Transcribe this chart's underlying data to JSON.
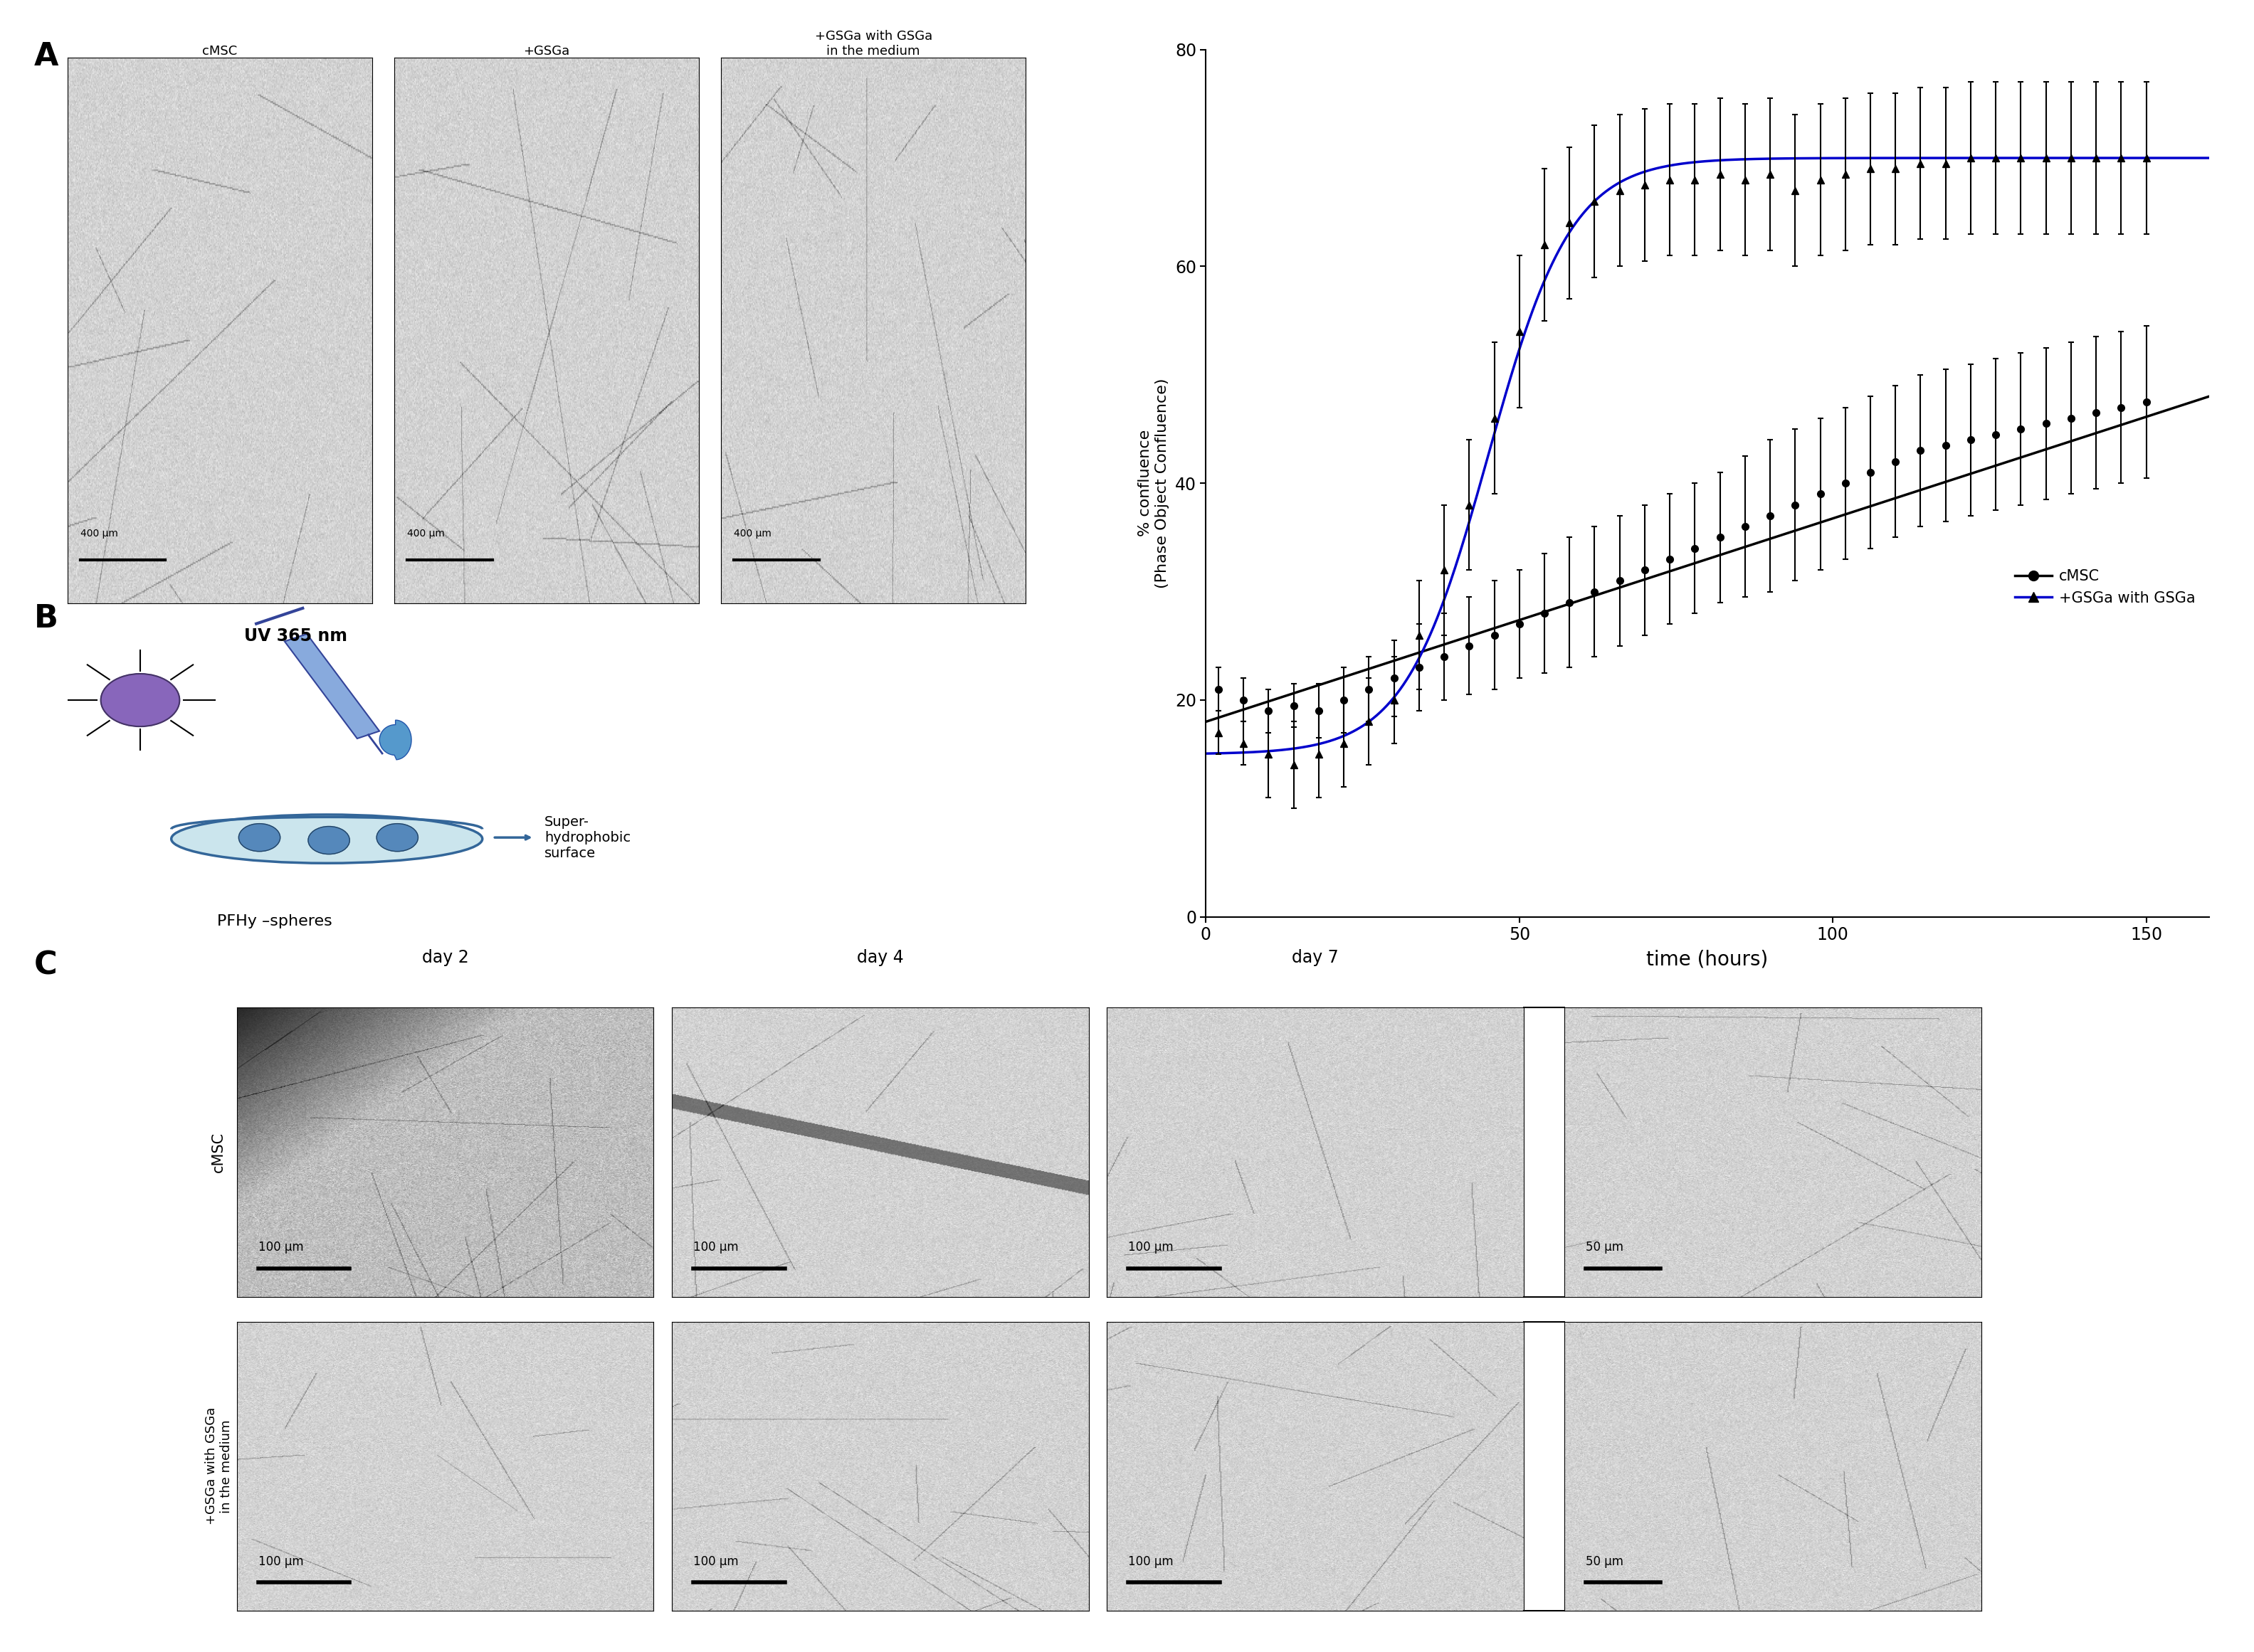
{
  "title": "",
  "panel_labels": [
    "A",
    "B",
    "C"
  ],
  "cmsc_x": [
    2,
    6,
    10,
    14,
    18,
    22,
    26,
    30,
    34,
    38,
    42,
    46,
    50,
    54,
    58,
    62,
    66,
    70,
    74,
    78,
    82,
    86,
    90,
    94,
    98,
    102,
    106,
    110,
    114,
    118,
    122,
    126,
    130,
    134,
    138,
    142,
    146,
    150
  ],
  "cmsc_y": [
    21,
    20,
    19,
    19.5,
    19,
    20,
    21,
    22,
    23,
    24,
    25,
    26,
    27,
    28,
    29,
    30,
    31,
    32,
    33,
    34,
    35,
    36,
    37,
    38,
    39,
    40,
    41,
    42,
    43,
    43.5,
    44,
    44.5,
    45,
    45.5,
    46,
    46.5,
    47,
    47.5
  ],
  "cmsc_yerr": [
    2,
    2,
    2,
    2,
    2.5,
    3,
    3,
    3.5,
    4,
    4,
    4.5,
    5,
    5,
    5.5,
    6,
    6,
    6,
    6,
    6,
    6,
    6,
    6.5,
    7,
    7,
    7,
    7,
    7,
    7,
    7,
    7,
    7,
    7,
    7,
    7,
    7,
    7,
    7,
    7
  ],
  "gsga_x": [
    2,
    6,
    10,
    14,
    18,
    22,
    26,
    30,
    34,
    38,
    42,
    46,
    50,
    54,
    58,
    62,
    66,
    70,
    74,
    78,
    82,
    86,
    90,
    94,
    98,
    102,
    106,
    110,
    114,
    118,
    122,
    126,
    130,
    134,
    138,
    142,
    146,
    150
  ],
  "gsga_y": [
    17,
    16,
    15,
    14,
    15,
    16,
    18,
    20,
    26,
    32,
    38,
    46,
    54,
    62,
    64,
    66,
    67,
    67.5,
    68,
    68,
    68.5,
    68,
    68.5,
    67,
    68,
    68.5,
    69,
    69,
    69.5,
    69.5,
    70,
    70,
    70,
    70,
    70,
    70,
    70,
    70
  ],
  "gsga_yerr": [
    2,
    2,
    4,
    4,
    4,
    4,
    4,
    4,
    5,
    6,
    6,
    7,
    7,
    7,
    7,
    7,
    7,
    7,
    7,
    7,
    7,
    7,
    7,
    7,
    7,
    7,
    7,
    7,
    7,
    7,
    7,
    7,
    7,
    7,
    7,
    7,
    7,
    7
  ],
  "cmsc_color": "#000000",
  "gsga_color": "#0000cc",
  "xlabel": "time (hours)",
  "ylabel": "% confluence\n(Phase Object Confluence)",
  "ylim": [
    0,
    80
  ],
  "yticks": [
    0,
    20,
    40,
    60,
    80
  ],
  "xlim": [
    0,
    160
  ],
  "xticks": [
    0,
    50,
    100,
    150
  ],
  "legend_labels": [
    "cMSC",
    "+GSGa with GSGa"
  ],
  "bg_color": "#ffffff",
  "day_labels": [
    "day 2",
    "day 4",
    "day 7"
  ],
  "row_labels_C": [
    "cMSC",
    "+GSGa with GSGa\nin the medium"
  ],
  "scale_bar_100": "100 μm",
  "scale_bar_50": "50 μm",
  "panel_A_labels": [
    "cMSC",
    "+GSGa",
    "+GSGa with GSGa\nin the medium"
  ],
  "scale_bar_400": "400 μm"
}
